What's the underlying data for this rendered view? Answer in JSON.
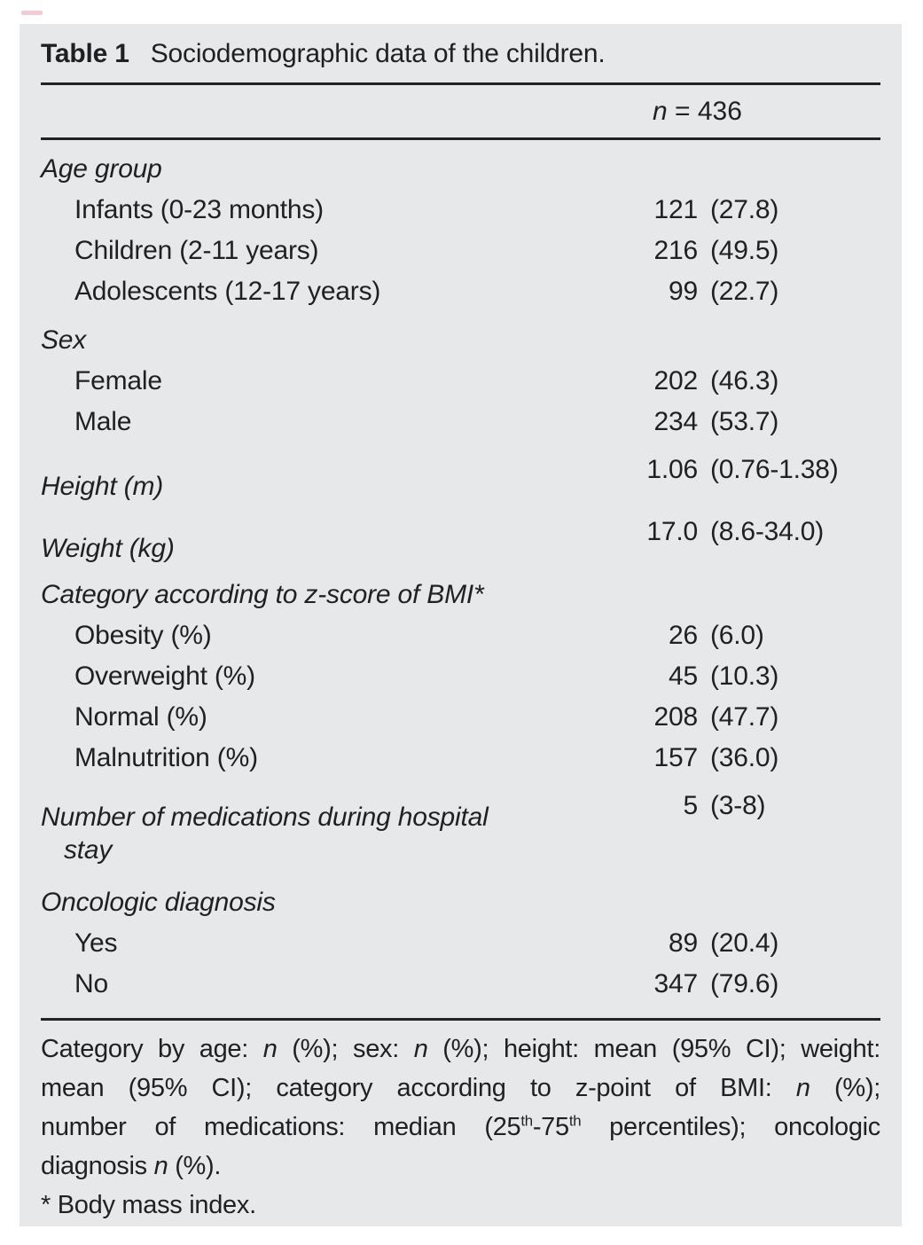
{
  "title": {
    "label": "Table 1",
    "text": "Sociodemographic data of the children."
  },
  "header": {
    "n": "n",
    "eq": " = 436"
  },
  "rows": [
    {
      "type": "section",
      "label": "Age group"
    },
    {
      "type": "item",
      "label": "Infants (0-23 months)",
      "num": "121",
      "paren": "(27.8)"
    },
    {
      "type": "item",
      "label": "Children (2-11 years)",
      "num": "216",
      "paren": "(49.5)"
    },
    {
      "type": "item",
      "label": "Adolescents (12-17 years)",
      "num": "99",
      "paren": "(22.7)"
    },
    {
      "type": "section",
      "label": "Sex"
    },
    {
      "type": "item",
      "label": "Female",
      "num": "202",
      "paren": "(46.3)"
    },
    {
      "type": "item",
      "label": "Male",
      "num": "234",
      "paren": "(53.7)"
    },
    {
      "type": "raised",
      "label": "Height (m)",
      "num": "1.06",
      "paren": "(0.76-1.38)"
    },
    {
      "type": "raised",
      "label": "Weight (kg)",
      "num": "17.0",
      "paren": "(8.6-34.0)"
    },
    {
      "type": "section",
      "label": "Category according to z-score of BMI*"
    },
    {
      "type": "item",
      "label": "Obesity (%)",
      "num": "26",
      "paren": "(6.0)"
    },
    {
      "type": "item",
      "label": "Overweight (%)",
      "num": "45",
      "paren": "(10.3)"
    },
    {
      "type": "item",
      "label": "Normal (%)",
      "num": "208",
      "paren": "(47.7)"
    },
    {
      "type": "item",
      "label": "Malnutrition (%)",
      "num": "157",
      "paren": "(36.0)"
    },
    {
      "type": "meds",
      "label": "Number of medications during hospital",
      "label2": "stay",
      "num": "5",
      "paren": "(3-8)"
    },
    {
      "type": "section",
      "label": "Oncologic diagnosis"
    },
    {
      "type": "item",
      "label": "Yes",
      "num": "89",
      "paren": "(20.4)"
    },
    {
      "type": "item",
      "label": "No",
      "num": "347",
      "paren": "(79.6)"
    }
  ],
  "footnote": {
    "l1a": "Category by age: ",
    "l1n1": "n",
    "l1b": " (%); sex: ",
    "l1n2": "n",
    "l1c": " (%); height: mean (95% CI); weight:",
    "l2a": "mean (95% CI); category according to z-point of BMI: ",
    "l2n": "n",
    "l2b": " (%);",
    "l3a": "number of medications: median (25",
    "l3sup1": "th",
    "l3b": "-75",
    "l3sup2": "th",
    "l3c": " percentiles); oncologic",
    "l4a": "diagnosis ",
    "l4n": "n",
    "l4b": " (%).",
    "l5": "* Body mass index."
  }
}
